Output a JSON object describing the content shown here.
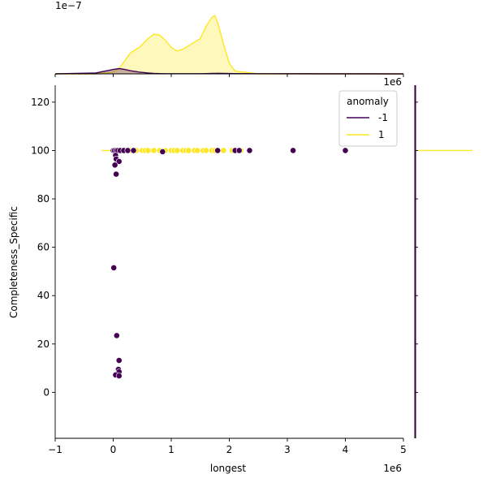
{
  "chart_data": {
    "type": "scatter",
    "subtype": "jointplot",
    "xlabel": "longest",
    "ylabel": "Completeness_Specific",
    "x_multiplier_label": "1e6",
    "top_offset_label": "1e6",
    "top_density_label": "1e−7",
    "xlim": [
      -1.0,
      5.0
    ],
    "ylim": [
      -19,
      127
    ],
    "x_ticks": [
      "−1",
      "0",
      "1",
      "2",
      "3",
      "4",
      "5"
    ],
    "x_tick_values": [
      -1,
      0,
      1,
      2,
      3,
      4,
      5
    ],
    "y_ticks": [
      "0",
      "20",
      "40",
      "60",
      "80",
      "100",
      "120"
    ],
    "y_tick_values": [
      0,
      20,
      40,
      60,
      80,
      100,
      120
    ],
    "grid": false,
    "legend": {
      "title": "anomaly",
      "placement": "top-right",
      "entries": [
        {
          "label": "-1",
          "color": "#440154"
        },
        {
          "label": "1",
          "color": "#fde725"
        }
      ]
    },
    "series": [
      {
        "name": "-1",
        "color": "#440154",
        "points": [
          [
            0.0,
            100
          ],
          [
            0.02,
            100
          ],
          [
            0.05,
            100
          ],
          [
            0.08,
            100
          ],
          [
            0.12,
            100
          ],
          [
            0.18,
            100
          ],
          [
            0.25,
            100
          ],
          [
            0.35,
            100
          ],
          [
            0.85,
            99.5
          ],
          [
            1.8,
            100
          ],
          [
            2.1,
            100
          ],
          [
            2.17,
            100
          ],
          [
            2.35,
            100
          ],
          [
            3.1,
            100
          ],
          [
            4.0,
            100
          ],
          [
            0.04,
            98
          ],
          [
            0.05,
            96.5
          ],
          [
            0.1,
            95.5
          ],
          [
            0.03,
            94
          ],
          [
            0.05,
            90.2
          ],
          [
            0.01,
            51.5
          ],
          [
            0.06,
            23.5
          ],
          [
            0.1,
            13.2
          ],
          [
            0.09,
            9.5
          ],
          [
            0.1,
            8.5
          ],
          [
            0.04,
            7.2
          ],
          [
            0.1,
            6.8
          ]
        ]
      },
      {
        "name": "1",
        "color": "#fde725",
        "points": [
          [
            0.15,
            100
          ],
          [
            0.2,
            100
          ],
          [
            0.25,
            100
          ],
          [
            0.3,
            100
          ],
          [
            0.35,
            100
          ],
          [
            0.4,
            100
          ],
          [
            0.5,
            100
          ],
          [
            0.55,
            100
          ],
          [
            0.6,
            100
          ],
          [
            0.7,
            100
          ],
          [
            0.8,
            100
          ],
          [
            0.9,
            100
          ],
          [
            1.0,
            100
          ],
          [
            1.05,
            100
          ],
          [
            1.1,
            100
          ],
          [
            1.2,
            100
          ],
          [
            1.25,
            100
          ],
          [
            1.3,
            100
          ],
          [
            1.4,
            100
          ],
          [
            1.45,
            100
          ],
          [
            1.55,
            100
          ],
          [
            1.6,
            100
          ],
          [
            1.7,
            100
          ],
          [
            1.75,
            100
          ],
          [
            1.9,
            100
          ],
          [
            2.05,
            100
          ],
          [
            2.1,
            100
          ],
          [
            2.2,
            100
          ]
        ]
      }
    ],
    "marginal_x": {
      "x": [
        -1.0,
        -0.3,
        0.0,
        0.1,
        0.2,
        0.3,
        0.45,
        0.6,
        0.7,
        0.8,
        0.9,
        1.0,
        1.1,
        1.2,
        1.3,
        1.4,
        1.5,
        1.6,
        1.7,
        1.75,
        1.8,
        1.9,
        2.0,
        2.1,
        2.5,
        5.0
      ],
      "density_1": [
        0,
        0,
        0.2,
        0.6,
        1.5,
        2.4,
        3.0,
        4.0,
        4.5,
        4.4,
        3.8,
        3.0,
        2.6,
        2.8,
        3.2,
        3.6,
        4.0,
        5.4,
        6.4,
        6.6,
        5.8,
        3.4,
        1.2,
        0.3,
        0,
        0
      ],
      "density_-1": [
        0,
        0.1,
        0.5,
        0.6,
        0.5,
        0.35,
        0.2,
        0.1,
        0.05,
        0.03,
        0.02,
        0.02,
        0.02,
        0.02,
        0.02,
        0.02,
        0.02,
        0.03,
        0.05,
        0.05,
        0.06,
        0.05,
        0.04,
        0.03,
        0.02,
        0
      ]
    },
    "marginal_y": {
      "note_series": "1 concentrated at 100; -1 negligible",
      "value_1": 100
    }
  }
}
